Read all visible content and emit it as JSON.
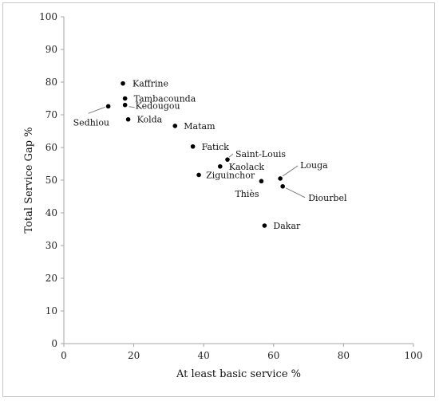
{
  "chart_data": {
    "type": "scatter",
    "title": "",
    "xlabel": "At least basic service %",
    "ylabel": "Total Service Gap %",
    "xlim": [
      0,
      100
    ],
    "ylim": [
      0,
      100
    ],
    "x_ticks": [
      0,
      20,
      40,
      60,
      80,
      100
    ],
    "y_ticks": [
      0,
      10,
      20,
      30,
      40,
      50,
      60,
      70,
      80,
      90,
      100
    ],
    "grid": "none",
    "legend": "none",
    "point_color": "#000000",
    "points": [
      {
        "label": "Kaffrine",
        "x": 16.9,
        "y": 79.6
      },
      {
        "label": "Tambacounda",
        "x": 17.5,
        "y": 75.0
      },
      {
        "label": "Kedougou",
        "x": 17.5,
        "y": 73.0
      },
      {
        "label": "Sedhiou",
        "x": 12.7,
        "y": 72.6
      },
      {
        "label": "Kolda",
        "x": 18.4,
        "y": 68.6
      },
      {
        "label": "Matam",
        "x": 31.8,
        "y": 66.6
      },
      {
        "label": "Fatick",
        "x": 36.9,
        "y": 60.3
      },
      {
        "label": "Saint-Louis",
        "x": 46.8,
        "y": 56.3
      },
      {
        "label": "Kaolack",
        "x": 44.7,
        "y": 54.2
      },
      {
        "label": "Ziguinchor",
        "x": 38.6,
        "y": 51.6
      },
      {
        "label": "Thiès",
        "x": 56.5,
        "y": 49.7
      },
      {
        "label": "Louga",
        "x": 61.9,
        "y": 50.5
      },
      {
        "label": "Diourbel",
        "x": 62.6,
        "y": 48.1
      },
      {
        "label": "Dakar",
        "x": 57.4,
        "y": 36.1
      }
    ]
  }
}
